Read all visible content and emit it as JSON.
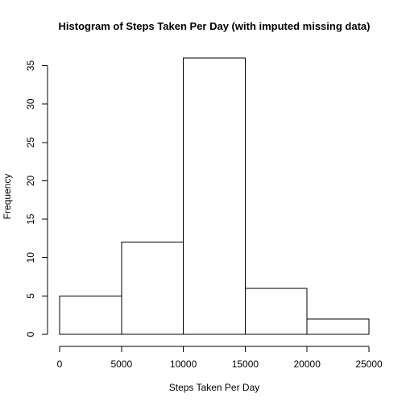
{
  "chart_data": {
    "type": "bar",
    "title": "Histogram of Steps Taken Per Day (with imputed missing data)",
    "xlabel": "Steps Taken Per Day",
    "ylabel": "Frequency",
    "bins": [
      {
        "from": 0,
        "to": 5000,
        "count": 5
      },
      {
        "from": 5000,
        "to": 10000,
        "count": 12
      },
      {
        "from": 10000,
        "to": 15000,
        "count": 36
      },
      {
        "from": 15000,
        "to": 20000,
        "count": 6
      },
      {
        "from": 20000,
        "to": 25000,
        "count": 2
      }
    ],
    "xlim": [
      0,
      25000
    ],
    "ylim": [
      0,
      36
    ],
    "x_ticks": [
      0,
      5000,
      10000,
      15000,
      20000,
      25000
    ],
    "x_tick_labels": [
      "0",
      "5000",
      "10000",
      "15000",
      "20000",
      "25000"
    ],
    "y_ticks": [
      0,
      5,
      10,
      15,
      20,
      25,
      30,
      35
    ],
    "y_tick_labels": [
      "0",
      "5",
      "10",
      "15",
      "20",
      "25",
      "30",
      "35"
    ],
    "bar_fill": "#ffffff",
    "bar_stroke": "#000000",
    "grid": false,
    "legend": "none"
  }
}
